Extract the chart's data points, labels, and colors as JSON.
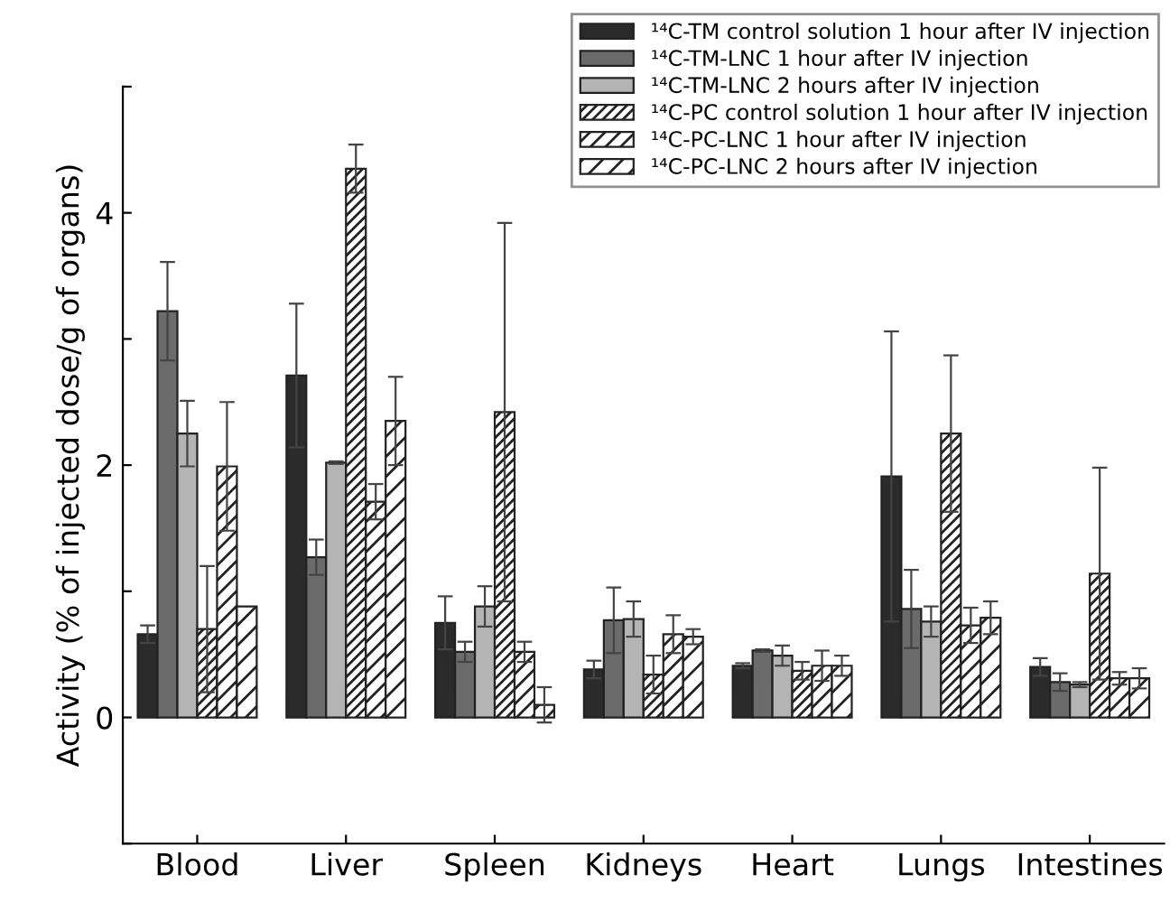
{
  "chart_data": {
    "type": "bar",
    "ylabel": "Activity (% of injected dose/g of organs)",
    "categories": [
      "Blood",
      "Liver",
      "Spleen",
      "Kidneys",
      "Heart",
      "Lungs",
      "Intestines"
    ],
    "ylim": [
      -1,
      5
    ],
    "yticks": [
      {
        "value": -1,
        "label": null
      },
      0,
      {
        "value": 1,
        "label": null
      },
      2,
      {
        "value": 3,
        "label": null
      },
      4,
      {
        "value": 5,
        "label": null
      }
    ],
    "grid": false,
    "legend": "top right",
    "series": [
      {
        "name": "¹⁴C-TM control solution 1 hour after IV injection",
        "color": "#2b2b2b",
        "values": [
          0.66,
          2.71,
          0.75,
          0.38,
          0.41,
          1.91,
          0.4
        ],
        "errors": [
          0.07,
          0.57,
          0.21,
          0.07,
          0.02,
          1.15,
          0.07
        ]
      },
      {
        "name": "¹⁴C-TM-LNC 1 hour after IV injection",
        "color": "#6b6b6b",
        "values": [
          3.22,
          1.27,
          0.52,
          0.77,
          0.53,
          0.86,
          0.28
        ],
        "errors": [
          0.39,
          0.14,
          0.08,
          0.26,
          0.01,
          0.31,
          0.07
        ]
      },
      {
        "name": "¹⁴C-TM-LNC 2 hours after IV injection",
        "color": "#b4b4b4",
        "values": [
          2.25,
          2.02,
          0.88,
          0.78,
          0.49,
          0.76,
          0.26
        ],
        "errors": [
          0.26,
          0.01,
          0.16,
          0.14,
          0.08,
          0.12,
          0.02
        ]
      },
      {
        "name": "¹⁴C-PC control solution 1 hour after IV injection",
        "color": "#222222",
        "values": [
          0.7,
          4.35,
          2.42,
          0.34,
          0.37,
          2.25,
          1.14
        ],
        "errors": [
          0.5,
          0.19,
          1.5,
          0.15,
          0.07,
          0.62,
          0.84
        ]
      },
      {
        "name": "¹⁴C-PC-LNC 1 hour after IV injection",
        "color": "#222222",
        "values": [
          1.99,
          1.71,
          0.52,
          0.66,
          0.41,
          0.73,
          0.31
        ],
        "errors": [
          0.51,
          0.14,
          0.08,
          0.15,
          0.12,
          0.14,
          0.05
        ]
      },
      {
        "name": "¹⁴C-PC-LNC 2 hours after IV injection",
        "color": "#222222",
        "values": [
          0.88,
          2.35,
          0.1,
          0.64,
          0.41,
          0.79,
          0.31
        ],
        "errors": [
          null,
          0.35,
          0.14,
          0.06,
          0.08,
          0.13,
          0.08
        ]
      }
    ]
  }
}
